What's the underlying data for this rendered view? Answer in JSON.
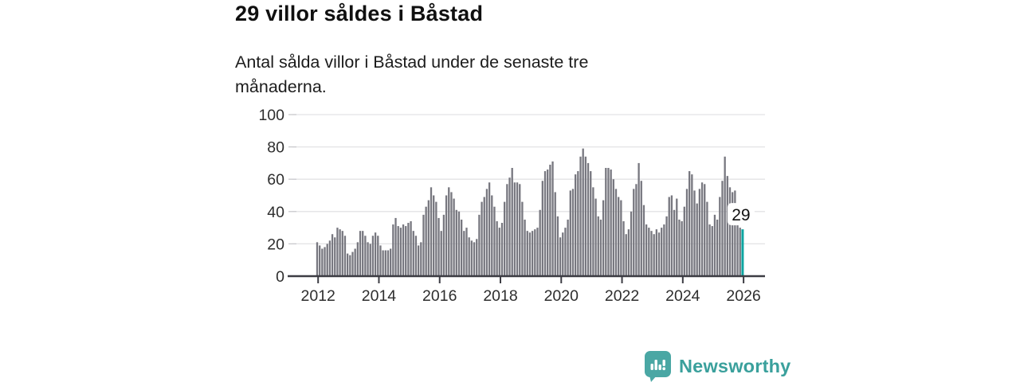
{
  "header": {
    "title": "29 villor såldes i Båstad",
    "subtitle": "Antal sålda villor i Båstad under de senaste tre månaderna."
  },
  "footer": {
    "brand": "Newsworthy"
  },
  "colors": {
    "bar": "#77777f",
    "highlight": "#0da5a1",
    "grid": "#e3e3e5",
    "axis": "#3c3c43",
    "tick_label": "#2e2e2e",
    "annotation_text": "#111111",
    "annotation_bg": "#ffffff",
    "brand_icon": "#4aa7a4",
    "brand_text": "#3aa09c"
  },
  "chart_data": {
    "type": "bar",
    "title": "29 villor såldes i Båstad",
    "subtitle": "Antal sålda villor i Båstad under de senaste tre månaderna.",
    "ylabel": "",
    "xlabel": "",
    "ylim": [
      0,
      100
    ],
    "y_ticks": [
      0,
      20,
      40,
      60,
      80,
      100
    ],
    "x_tick_labels": [
      "2012",
      "2014",
      "2016",
      "2018",
      "2020",
      "2022",
      "2024",
      "2026"
    ],
    "grid": true,
    "frequency": "monthly",
    "start_month": "2012-01",
    "end_month": "2026-01",
    "highlight_last": true,
    "annotation": {
      "label": "29",
      "applies_to": "last-bar"
    },
    "values": [
      21,
      19,
      17,
      18,
      20,
      22,
      26,
      24,
      30,
      29,
      28,
      25,
      14,
      13,
      15,
      17,
      21,
      28,
      28,
      25,
      21,
      20,
      25,
      27,
      25,
      19,
      16,
      16,
      16,
      17,
      32,
      36,
      31,
      30,
      32,
      31,
      33,
      34,
      28,
      25,
      19,
      21,
      38,
      43,
      47,
      55,
      50,
      46,
      36,
      28,
      38,
      50,
      55,
      52,
      48,
      41,
      40,
      35,
      28,
      30,
      24,
      22,
      21,
      23,
      38,
      46,
      49,
      54,
      58,
      50,
      43,
      34,
      30,
      33,
      46,
      57,
      61,
      67,
      58,
      58,
      57,
      46,
      35,
      28,
      27,
      28,
      29,
      30,
      41,
      59,
      65,
      66,
      69,
      71,
      52,
      37,
      24,
      27,
      30,
      35,
      53,
      54,
      63,
      65,
      74,
      79,
      74,
      70,
      65,
      55,
      48,
      37,
      35,
      47,
      67,
      67,
      66,
      60,
      54,
      49,
      47,
      34,
      26,
      29,
      40,
      54,
      57,
      70,
      59,
      44,
      32,
      30,
      28,
      26,
      29,
      27,
      30,
      32,
      37,
      49,
      50,
      41,
      48,
      35,
      34,
      43,
      54,
      65,
      63,
      53,
      45,
      54,
      58,
      57,
      46,
      32,
      31,
      38,
      35,
      49,
      59,
      74,
      62,
      55,
      52,
      53,
      43,
      30,
      29
    ]
  }
}
